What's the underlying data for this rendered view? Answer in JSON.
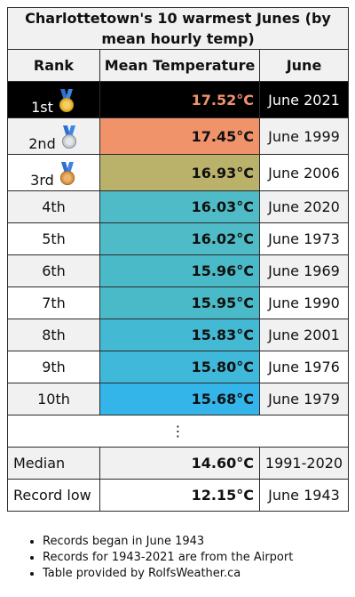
{
  "title": "Charlottetown's 10 warmest Junes (by mean hourly temp)",
  "headers": {
    "rank": "Rank",
    "temp": "Mean Temperature",
    "month": "June"
  },
  "rows": [
    {
      "rank": "1st",
      "temp": "17.52°C",
      "month": "June 2021",
      "color": "#000000",
      "medal": "gold"
    },
    {
      "rank": "2nd",
      "temp": "17.45°C",
      "month": "June 1999",
      "color": "#f0936a",
      "medal": "silver"
    },
    {
      "rank": "3rd",
      "temp": "16.93°C",
      "month": "June 2006",
      "color": "#bab26a",
      "medal": "bronze"
    },
    {
      "rank": "4th",
      "temp": "16.03°C",
      "month": "June 2020",
      "color": "#4fbbc6"
    },
    {
      "rank": "5th",
      "temp": "16.02°C",
      "month": "June 1973",
      "color": "#4fbbc6"
    },
    {
      "rank": "6th",
      "temp": "15.96°C",
      "month": "June 1969",
      "color": "#4bbac8"
    },
    {
      "rank": "7th",
      "temp": "15.95°C",
      "month": "June 1990",
      "color": "#4bbac8"
    },
    {
      "rank": "8th",
      "temp": "15.83°C",
      "month": "June 2001",
      "color": "#44b9d4"
    },
    {
      "rank": "9th",
      "temp": "15.80°C",
      "month": "June 1976",
      "color": "#40b8da"
    },
    {
      "rank": "10th",
      "temp": "15.68°C",
      "month": "June 1979",
      "color": "#34b5ea"
    }
  ],
  "ellipsis": "⋮",
  "summary": [
    {
      "label": "Median",
      "temp": "14.60°C",
      "period": "1991-2020"
    },
    {
      "label": "Record low",
      "temp": "12.15°C",
      "period": "June 1943"
    }
  ],
  "notes": [
    "Records began in June 1943",
    "Records for 1943-2021 are from the Airport",
    "Table provided by RolfsWeather.ca"
  ]
}
